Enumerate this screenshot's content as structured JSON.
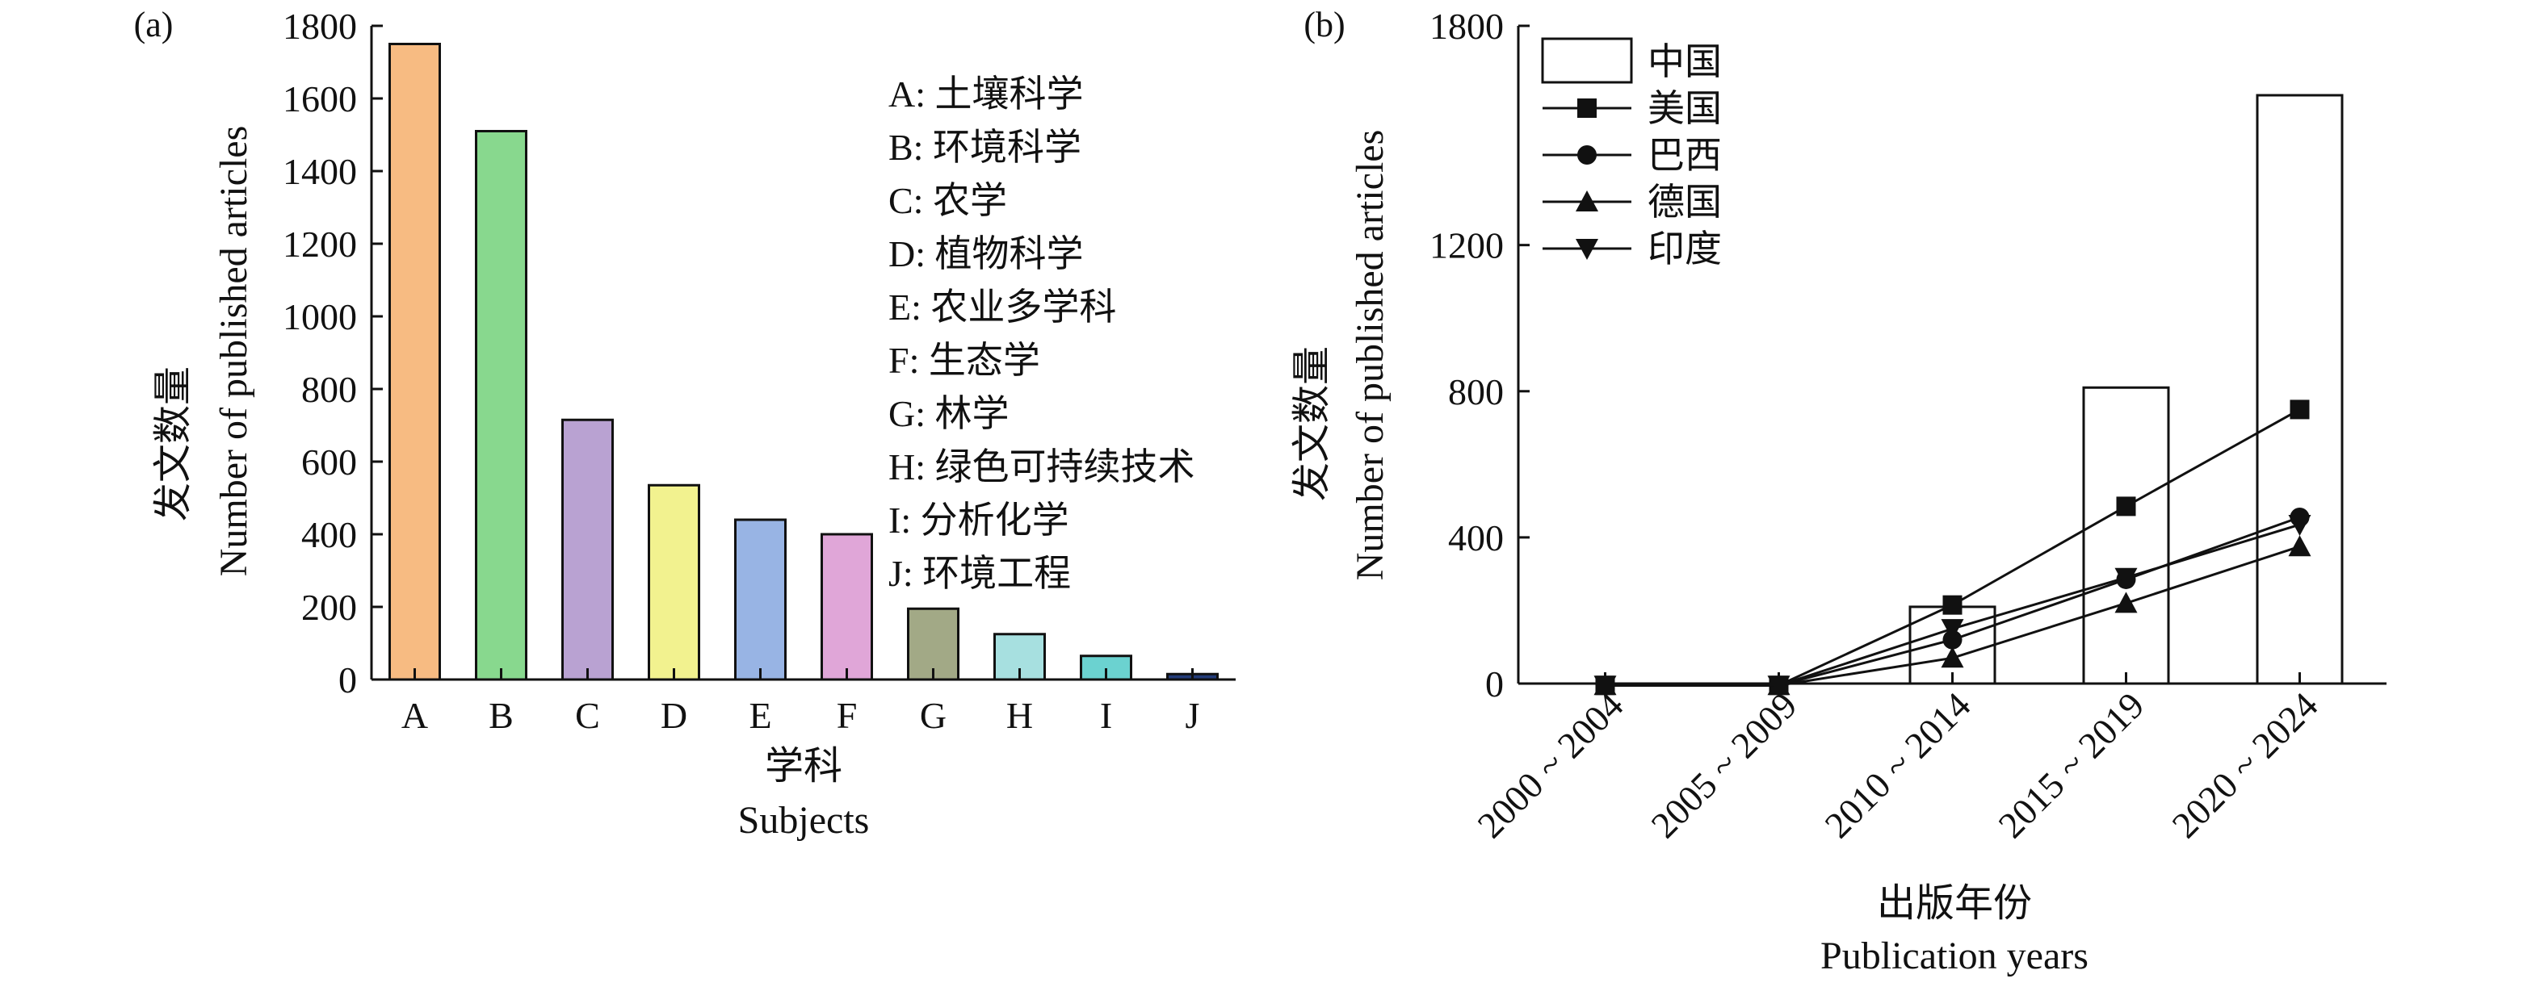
{
  "chart_data": [
    {
      "type": "bar",
      "panel_label": "(a)",
      "ylabel_cn": "发文数量",
      "ylabel_en": "Number of published articles",
      "xlabel_cn": "学科",
      "xlabel_en": "Subjects",
      "ylim": [
        0,
        1800
      ],
      "yticks": [
        0,
        200,
        400,
        600,
        800,
        1000,
        1200,
        1400,
        1600,
        1800
      ],
      "categories": [
        "A",
        "B",
        "C",
        "D",
        "E",
        "F",
        "G",
        "H",
        "I",
        "J"
      ],
      "values": [
        1750,
        1510,
        715,
        535,
        440,
        400,
        195,
        125,
        65,
        15
      ],
      "colors": [
        "#F7BB82",
        "#88D88E",
        "#B9A2D2",
        "#F2F28F",
        "#98B4E4",
        "#E0A6D8",
        "#A2A986",
        "#A7E0E0",
        "#6BD2D0",
        "#233C7A"
      ],
      "legend_items": [
        "A: 土壤科学",
        "B: 环境科学",
        "C: 农学",
        "D: 植物科学",
        "E: 农业多学科",
        "F: 生态学",
        "G: 林学",
        "H: 绿色可持续技术",
        "I: 分析化学",
        "J: 环境工程"
      ]
    },
    {
      "type": "bar+line",
      "panel_label": "(b)",
      "ylabel_cn": "发文数量",
      "ylabel_en": "Number of published articles",
      "xlabel_cn": "出版年份",
      "xlabel_en": "Publication years",
      "ylim": [
        0,
        1800
      ],
      "yticks": [
        0,
        400,
        800,
        1200,
        1800
      ],
      "categories": [
        "2000 ~ 2004",
        "2005 ~ 2009",
        "2010 ~ 2014",
        "2015 ~ 2019",
        "2020 ~ 2024"
      ],
      "bar_series": {
        "name": "中国",
        "values": [
          0,
          0,
          210,
          810,
          1610
        ]
      },
      "line_series": [
        {
          "name": "美国",
          "marker": "square",
          "values": [
            -5,
            -5,
            215,
            485,
            750
          ]
        },
        {
          "name": "巴西",
          "marker": "circle",
          "values": [
            -5,
            -5,
            120,
            285,
            455
          ]
        },
        {
          "name": "德国",
          "marker": "triangle-up",
          "values": [
            -5,
            -5,
            70,
            220,
            375
          ]
        },
        {
          "name": "印度",
          "marker": "triangle-down",
          "values": [
            -5,
            -5,
            150,
            290,
            435
          ]
        }
      ],
      "legend_position": "top-left"
    }
  ]
}
